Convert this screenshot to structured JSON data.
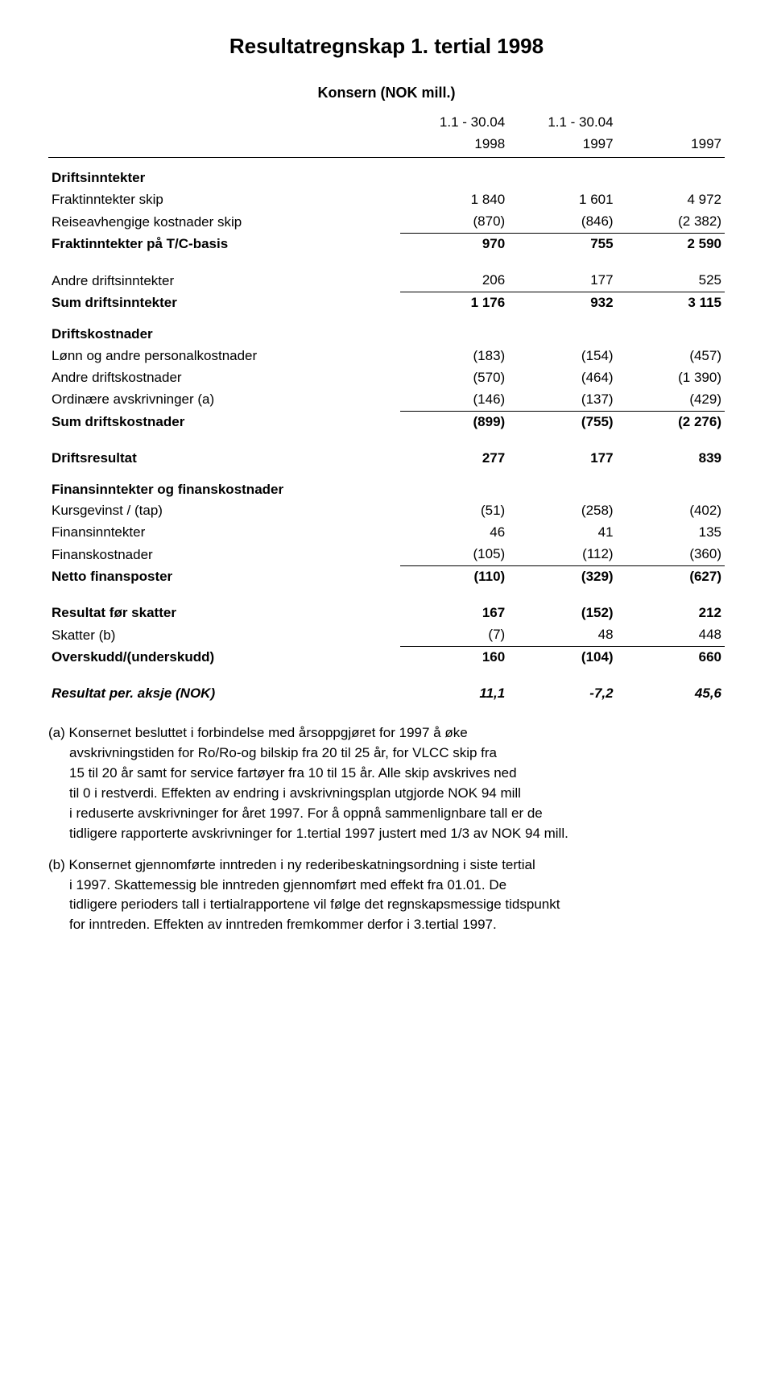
{
  "title": "Resultatregnskap 1. tertial 1998",
  "subtitle": "Konsern  (NOK mill.)",
  "periods": [
    "1.1 - 30.04",
    "1.1 - 30.04",
    ""
  ],
  "years": [
    "1998",
    "1997",
    "1997"
  ],
  "sections": {
    "driftsinntekter_header": "Driftsinntekter",
    "fraktinntekter_skip": {
      "label": "Fraktinntekter skip",
      "c1": "1 840",
      "c2": "1 601",
      "c3": "4 972"
    },
    "reiseavhengige": {
      "label": "Reiseavhengige kostnader skip",
      "c1": "(870)",
      "c2": "(846)",
      "c3": "(2 382)"
    },
    "fraktinntekter_tc": {
      "label": "Fraktinntekter på T/C-basis",
      "c1": "970",
      "c2": "755",
      "c3": "2 590"
    },
    "andre_driftsinntekter": {
      "label": "Andre driftsinntekter",
      "c1": "206",
      "c2": "177",
      "c3": "525"
    },
    "sum_driftsinntekter": {
      "label": "Sum driftsinntekter",
      "c1": "1 176",
      "c2": "932",
      "c3": "3 115"
    },
    "driftskostnader_header": "Driftskostnader",
    "lonn": {
      "label": "Lønn og andre personalkostnader",
      "c1": "(183)",
      "c2": "(154)",
      "c3": "(457)"
    },
    "andre_driftskostnader": {
      "label": "Andre driftskostnader",
      "c1": "(570)",
      "c2": "(464)",
      "c3": "(1 390)"
    },
    "ordinare_avskr": {
      "label": "Ordinære avskrivninger  (a)",
      "c1": "(146)",
      "c2": "(137)",
      "c3": "(429)"
    },
    "sum_driftskostnader": {
      "label": "Sum driftskostnader",
      "c1": "(899)",
      "c2": "(755)",
      "c3": "(2 276)"
    },
    "driftsresultat": {
      "label": "Driftsresultat",
      "c1": "277",
      "c2": "177",
      "c3": "839"
    },
    "finans_header": "Finansinntekter og finanskostnader",
    "kursgevinst": {
      "label": "Kursgevinst / (tap)",
      "c1": "(51)",
      "c2": "(258)",
      "c3": "(402)"
    },
    "finansinntekter": {
      "label": "Finansinntekter",
      "c1": "46",
      "c2": "41",
      "c3": "135"
    },
    "finanskostnader": {
      "label": "Finanskostnader",
      "c1": "(105)",
      "c2": "(112)",
      "c3": "(360)"
    },
    "netto_finansposter": {
      "label": "Netto finansposter",
      "c1": "(110)",
      "c2": "(329)",
      "c3": "(627)"
    },
    "resultat_for_skatter": {
      "label": "Resultat før skatter",
      "c1": "167",
      "c2": "(152)",
      "c3": "212"
    },
    "skatter": {
      "label": "Skatter  (b)",
      "c1": "(7)",
      "c2": "48",
      "c3": "448"
    },
    "overskudd": {
      "label": "Overskudd/(underskudd)",
      "c1": "160",
      "c2": "(104)",
      "c3": "660"
    },
    "resultat_per_aksje": {
      "label": "Resultat per. aksje (NOK)",
      "c1": "11,1",
      "c2": "-7,2",
      "c3": "45,6"
    }
  },
  "notes": {
    "a1": "(a)  Konsernet besluttet i forbindelse med årsoppgjøret for 1997  å øke",
    "a2": "avskrivningstiden for Ro/Ro-og bilskip fra 20 til 25 år, for VLCC skip fra",
    "a3": "15 til 20 år samt for service fartøyer fra 10 til 15 år. Alle skip avskrives ned",
    "a4": "til 0 i restverdi. Effekten av endring i avskrivningsplan utgjorde NOK 94 mill",
    "a5": "i reduserte avskrivninger for året 1997. For å oppnå sammenlignbare tall er de",
    "a6": "tidligere rapporterte avskrivninger for 1.tertial 1997 justert med 1/3 av NOK 94 mill.",
    "b1": "(b)  Konsernet gjennomførte inntreden i ny rederibeskatningsordning i siste tertial",
    "b2": "i 1997. Skattemessig ble inntreden gjennomført med effekt fra 01.01. De",
    "b3": "tidligere perioders tall i tertialrapportene vil følge det regnskapsmessige tidspunkt",
    "b4": "for inntreden. Effekten av inntreden fremkommer derfor i 3.tertial 1997."
  }
}
